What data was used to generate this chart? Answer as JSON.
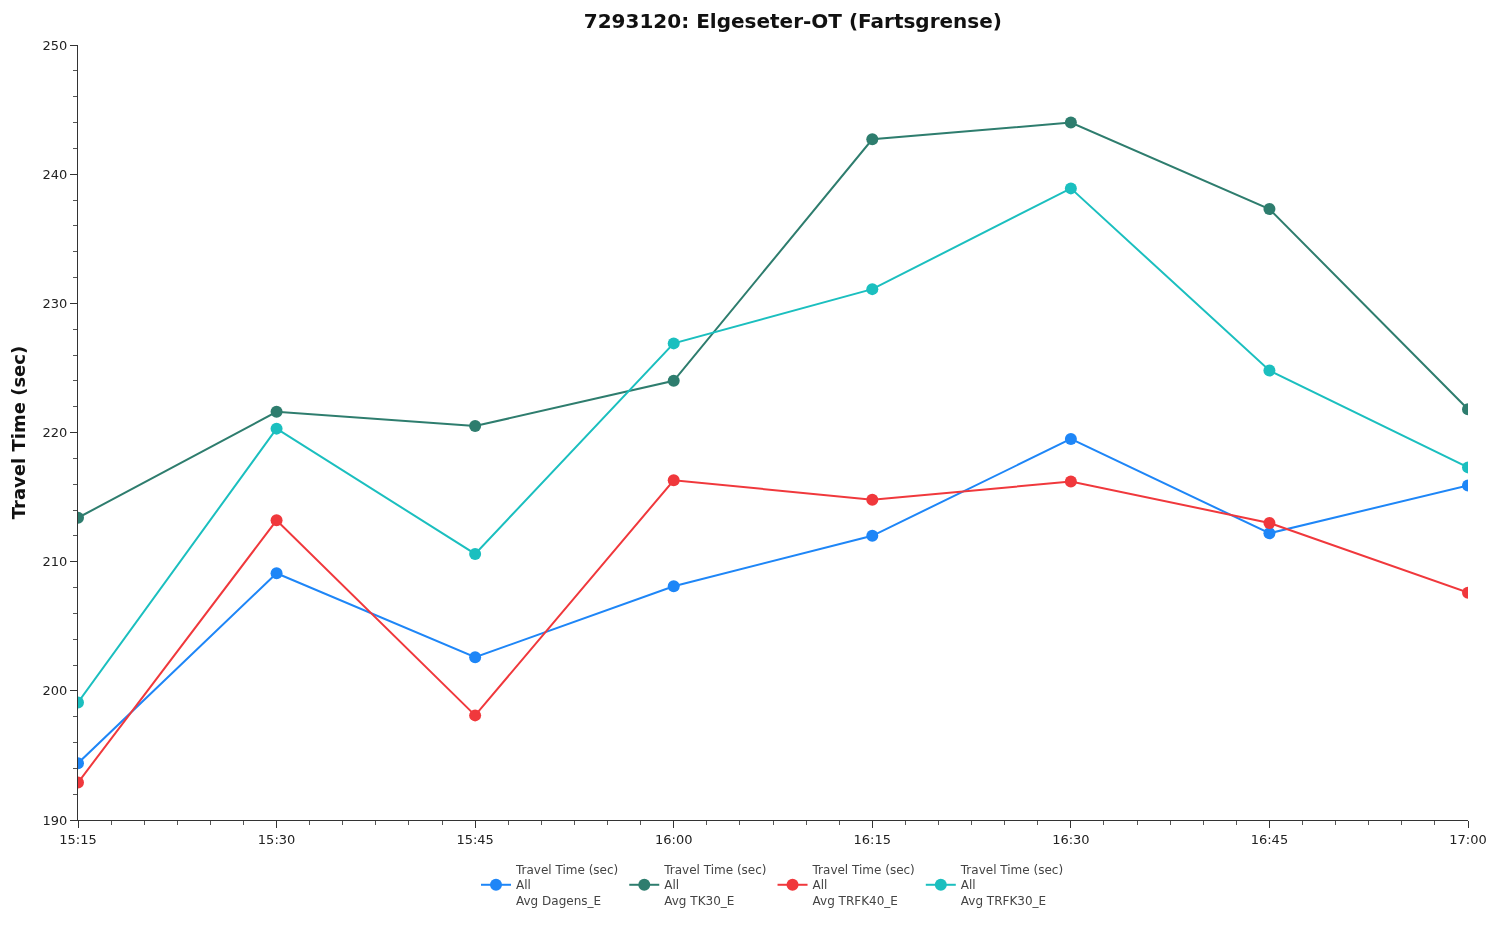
{
  "chart_data": {
    "type": "line",
    "title": "7293120: Elgeseter-OT (Fartsgrense)",
    "ylabel": "Travel Time (sec)",
    "x": [
      15.25,
      15.5,
      15.75,
      16.0,
      16.25,
      16.5,
      16.75,
      17.0
    ],
    "xlim": [
      15.25,
      17.0
    ],
    "xticks": [
      {
        "value": 15.25,
        "label": "15:15"
      },
      {
        "value": 15.5,
        "label": "15:30"
      },
      {
        "value": 15.75,
        "label": "15:45"
      },
      {
        "value": 16.0,
        "label": "16:00"
      },
      {
        "value": 16.25,
        "label": "16:15"
      },
      {
        "value": 16.5,
        "label": "16:30"
      },
      {
        "value": 16.75,
        "label": "16:45"
      },
      {
        "value": 17.0,
        "label": "17:00"
      }
    ],
    "ylim": [
      190,
      250
    ],
    "yticks": [
      190,
      200,
      210,
      220,
      230,
      240,
      250
    ],
    "grid": false,
    "legend": "bottom",
    "marker": "circle",
    "line_style": "solid",
    "series": [
      {
        "name": "Travel Time (sec)\nAll\nAvg Dagens_E",
        "color": "#1e86f7",
        "values": [
          194.4,
          209.1,
          202.6,
          208.1,
          212.0,
          219.5,
          212.2,
          215.9
        ]
      },
      {
        "name": "Travel Time (sec)\nAll\nAvg TK30_E",
        "color": "#2e7d6e",
        "values": [
          213.4,
          221.6,
          220.5,
          224.0,
          242.7,
          244.0,
          237.3,
          221.8
        ]
      },
      {
        "name": "Travel Time (sec)\nAll\nAvg TRFK40_E",
        "color": "#f0383c",
        "values": [
          192.9,
          213.2,
          198.1,
          216.3,
          214.8,
          216.2,
          213.0,
          207.6
        ]
      },
      {
        "name": "Travel Time (sec)\nAll\nAvg TRFK30_E",
        "color": "#1bbfbf",
        "values": [
          199.1,
          220.3,
          210.6,
          226.9,
          231.1,
          238.9,
          224.8,
          217.3
        ]
      }
    ]
  }
}
